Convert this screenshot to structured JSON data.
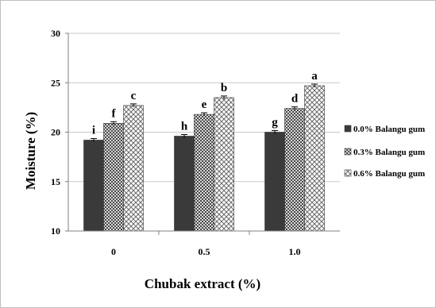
{
  "colors": {
    "series0": "#3a3a3a",
    "series1": "#9a9a9a",
    "series2": "#ffffff",
    "grid": "#c8c8c8",
    "axis": "#808080"
  },
  "chart_data": {
    "type": "bar",
    "title": "",
    "xlabel": "Chubak extract (%)",
    "ylabel": "Moisture (%)",
    "ylim": [
      10,
      30
    ],
    "yticks": [
      "10",
      "15",
      "20",
      "25",
      "30"
    ],
    "categories": [
      "0",
      "0.5",
      "1.0"
    ],
    "series": [
      {
        "name": "0.0% Balangu gum",
        "pattern": "solid-dark",
        "values": [
          19.2,
          19.6,
          20.0
        ],
        "letters": [
          "i",
          "h",
          "g"
        ]
      },
      {
        "name": "0.3% Balangu gum",
        "pattern": "checker",
        "values": [
          20.9,
          21.8,
          22.4
        ],
        "letters": [
          "f",
          "e",
          "d"
        ]
      },
      {
        "name": "0.6% Balangu gum",
        "pattern": "lattice",
        "values": [
          22.7,
          23.5,
          24.7
        ],
        "letters": [
          "c",
          "b",
          "a"
        ]
      }
    ],
    "error_bars": true,
    "grid": true,
    "legend": "right"
  }
}
